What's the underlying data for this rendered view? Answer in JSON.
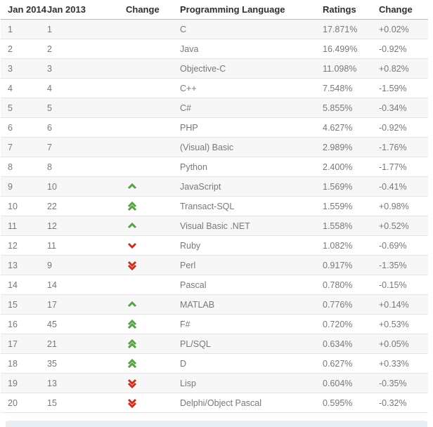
{
  "table": {
    "headers": {
      "rank_2014": "Jan 2014",
      "rank_2013": "Jan 2013",
      "change_arrow": "Change",
      "language": "Programming Language",
      "ratings": "Ratings",
      "change_pct": "Change"
    },
    "rows": [
      {
        "rank_2014": "1",
        "rank_2013": "1",
        "movement": "none",
        "language": "C",
        "ratings": "17.871%",
        "change": "+0.02%"
      },
      {
        "rank_2014": "2",
        "rank_2013": "2",
        "movement": "none",
        "language": "Java",
        "ratings": "16.499%",
        "change": "-0.92%"
      },
      {
        "rank_2014": "3",
        "rank_2013": "3",
        "movement": "none",
        "language": "Objective-C",
        "ratings": "11.098%",
        "change": "+0.82%"
      },
      {
        "rank_2014": "4",
        "rank_2013": "4",
        "movement": "none",
        "language": "C++",
        "ratings": "7.548%",
        "change": "-1.59%"
      },
      {
        "rank_2014": "5",
        "rank_2013": "5",
        "movement": "none",
        "language": "C#",
        "ratings": "5.855%",
        "change": "-0.34%"
      },
      {
        "rank_2014": "6",
        "rank_2013": "6",
        "movement": "none",
        "language": "PHP",
        "ratings": "4.627%",
        "change": "-0.92%"
      },
      {
        "rank_2014": "7",
        "rank_2013": "7",
        "movement": "none",
        "language": "(Visual) Basic",
        "ratings": "2.989%",
        "change": "-1.76%"
      },
      {
        "rank_2014": "8",
        "rank_2013": "8",
        "movement": "none",
        "language": "Python",
        "ratings": "2.400%",
        "change": "-1.77%"
      },
      {
        "rank_2014": "9",
        "rank_2013": "10",
        "movement": "up",
        "language": "JavaScript",
        "ratings": "1.569%",
        "change": "-0.41%"
      },
      {
        "rank_2014": "10",
        "rank_2013": "22",
        "movement": "double-up",
        "language": "Transact-SQL",
        "ratings": "1.559%",
        "change": "+0.98%"
      },
      {
        "rank_2014": "11",
        "rank_2013": "12",
        "movement": "up",
        "language": "Visual Basic .NET",
        "ratings": "1.558%",
        "change": "+0.52%"
      },
      {
        "rank_2014": "12",
        "rank_2013": "11",
        "movement": "down",
        "language": "Ruby",
        "ratings": "1.082%",
        "change": "-0.69%"
      },
      {
        "rank_2014": "13",
        "rank_2013": "9",
        "movement": "double-down",
        "language": "Perl",
        "ratings": "0.917%",
        "change": "-1.35%"
      },
      {
        "rank_2014": "14",
        "rank_2013": "14",
        "movement": "none",
        "language": "Pascal",
        "ratings": "0.780%",
        "change": "-0.15%"
      },
      {
        "rank_2014": "15",
        "rank_2013": "17",
        "movement": "up",
        "language": "MATLAB",
        "ratings": "0.776%",
        "change": "+0.14%"
      },
      {
        "rank_2014": "16",
        "rank_2013": "45",
        "movement": "double-up",
        "language": "F#",
        "ratings": "0.720%",
        "change": "+0.53%"
      },
      {
        "rank_2014": "17",
        "rank_2013": "21",
        "movement": "double-up",
        "language": "PL/SQL",
        "ratings": "0.634%",
        "change": "+0.05%"
      },
      {
        "rank_2014": "18",
        "rank_2013": "35",
        "movement": "double-up",
        "language": "D",
        "ratings": "0.627%",
        "change": "+0.33%"
      },
      {
        "rank_2014": "19",
        "rank_2013": "13",
        "movement": "double-down",
        "language": "Lisp",
        "ratings": "0.604%",
        "change": "-0.35%"
      },
      {
        "rank_2014": "20",
        "rank_2013": "15",
        "movement": "double-down",
        "language": "Delphi/Object Pascal",
        "ratings": "0.595%",
        "change": "-0.32%"
      }
    ]
  },
  "colors": {
    "up_arrow": "#55a347",
    "down_arrow": "#c9301c",
    "stripe_bg": "#f7f7f7",
    "header_border": "#b9b9b9",
    "row_border": "#e4e4e4",
    "footer_bar_bg": "#e8edf2"
  }
}
